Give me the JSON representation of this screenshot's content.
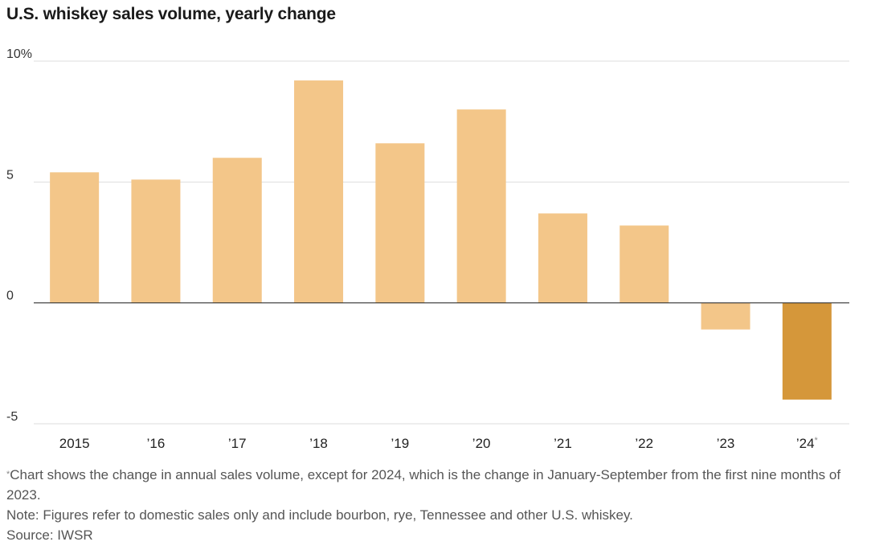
{
  "chart_data": {
    "type": "bar",
    "title": "U.S. whiskey sales volume, yearly change",
    "categories": [
      "2015",
      "’16",
      "’17",
      "’18",
      "’19",
      "’20",
      "’21",
      "’22",
      "’23",
      "’24"
    ],
    "category_marks": [
      "",
      "",
      "",
      "",
      "",
      "",
      "",
      "",
      "",
      "*"
    ],
    "values": [
      5.4,
      5.1,
      6.0,
      9.2,
      6.6,
      8.0,
      3.7,
      3.2,
      -1.1,
      -4.0
    ],
    "highlight_index": 9,
    "y_ticks": [
      {
        "value": 10,
        "label": "10%"
      },
      {
        "value": 5,
        "label": "5"
      },
      {
        "value": 0,
        "label": "0"
      },
      {
        "value": -5,
        "label": "-5"
      }
    ],
    "ylim": [
      -5,
      10
    ],
    "grid": true,
    "colors": {
      "bar": "#f3c689",
      "highlight": "#d5973a",
      "grid": "#dddddd",
      "zero_line": "#333333"
    }
  },
  "notes": {
    "asterisk": "*",
    "footnote": "Chart shows the change in annual sales volume, except for 2024, which is the change in January-September from the first nine months of 2023.",
    "note": "Note: Figures refer to domestic sales only and include bourbon, rye, Tennessee and other U.S. whiskey.",
    "source": "Source: IWSR"
  }
}
